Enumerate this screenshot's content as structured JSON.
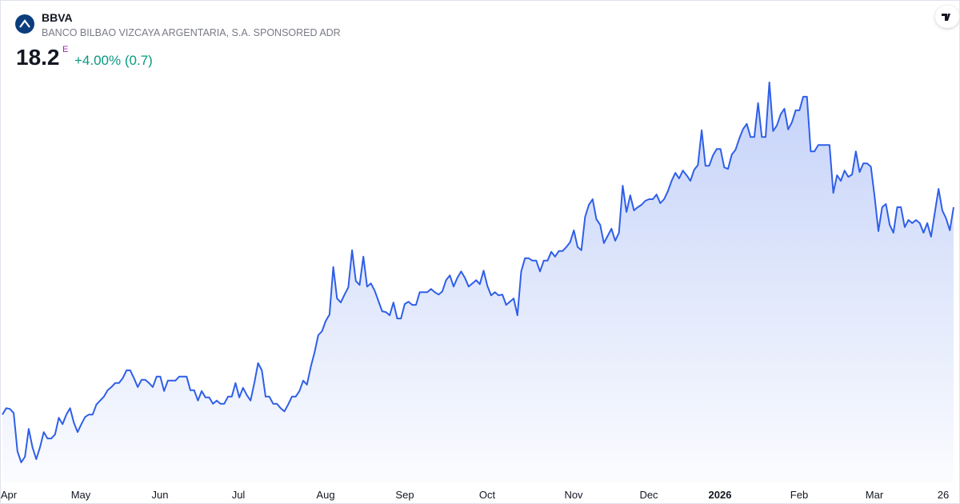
{
  "header": {
    "symbol": "BBVA",
    "name": "BANCO BILBAO VIZCAYA ARGENTARIA, S.A. SPONSORED ADR",
    "price": 18.2,
    "price_flag": "E",
    "change_pct": {
      "value": 4,
      "label": "+4.00%"
    },
    "change": {
      "value": 0.7,
      "label": "(0.7)"
    }
  },
  "chart_data": {
    "type": "area",
    "x_labels": [
      "Apr",
      "May",
      "Jun",
      "Jul",
      "Aug",
      "Sep",
      "Oct",
      "Nov",
      "Dec",
      "2026",
      "Feb",
      "Mar",
      "26"
    ],
    "series": [
      {
        "name": "BBVA",
        "color": "#2f5fe8",
        "values": [
          13.0,
          13.16,
          13.14,
          13.04,
          12.08,
          11.8,
          11.94,
          12.64,
          12.18,
          11.88,
          12.18,
          12.56,
          12.4,
          12.4,
          12.5,
          12.92,
          12.76,
          13.0,
          13.16,
          12.8,
          12.56,
          12.76,
          12.94,
          13.0,
          13.0,
          13.25,
          13.35,
          13.45,
          13.61,
          13.69,
          13.79,
          13.79,
          13.91,
          14.11,
          14.11,
          13.91,
          13.69,
          13.87,
          13.87,
          13.79,
          13.69,
          13.95,
          13.95,
          13.59,
          13.85,
          13.85,
          13.85,
          13.95,
          13.95,
          13.95,
          13.61,
          13.61,
          13.35,
          13.59,
          13.43,
          13.43,
          13.27,
          13.35,
          13.27,
          13.27,
          13.45,
          13.45,
          13.79,
          13.43,
          13.67,
          13.49,
          13.35,
          13.79,
          14.29,
          14.11,
          13.45,
          13.45,
          13.27,
          13.27,
          13.16,
          13.08,
          13.25,
          13.45,
          13.45,
          13.59,
          13.85,
          13.75,
          14.19,
          14.55,
          14.99,
          15.09,
          15.35,
          15.51,
          16.7,
          15.91,
          15.81,
          16.01,
          16.19,
          17.12,
          16.35,
          16.25,
          16.96,
          16.21,
          16.29,
          16.11,
          15.85,
          15.59,
          15.57,
          15.49,
          15.81,
          15.41,
          15.41,
          15.77,
          15.83,
          15.75,
          15.75,
          16.07,
          16.07,
          16.07,
          16.15,
          16.07,
          16.01,
          16.09,
          16.37,
          16.49,
          16.21,
          16.43,
          16.59,
          16.43,
          16.21,
          16.29,
          16.37,
          16.27,
          16.61,
          16.23,
          15.99,
          16.07,
          15.99,
          16.01,
          15.75,
          15.83,
          15.91,
          15.49,
          16.59,
          16.92,
          16.92,
          16.86,
          16.86,
          16.59,
          16.86,
          16.86,
          17.08,
          16.96,
          17.1,
          17.1,
          17.2,
          17.32,
          17.62,
          17.2,
          17.12,
          17.96,
          18.26,
          18.4,
          17.9,
          17.76,
          17.3,
          17.48,
          17.66,
          17.36,
          17.56,
          18.74,
          18.08,
          18.5,
          18.12,
          18.2,
          18.26,
          18.36,
          18.4,
          18.4,
          18.52,
          18.3,
          18.4,
          18.6,
          18.86,
          19.06,
          18.92,
          19.12,
          19.0,
          18.86,
          19.14,
          19.26,
          20.13,
          19.24,
          19.24,
          19.5,
          19.66,
          19.66,
          19.2,
          19.16,
          19.52,
          19.64,
          19.92,
          20.16,
          20.29,
          19.96,
          19.96,
          20.81,
          19.96,
          19.96,
          21.33,
          20.11,
          20.25,
          20.53,
          20.67,
          20.15,
          20.33,
          20.63,
          20.63,
          20.97,
          20.97,
          19.6,
          19.6,
          19.76,
          19.76,
          19.76,
          19.76,
          18.56,
          19.0,
          18.86,
          19.12,
          18.96,
          19.02,
          19.6,
          19.08,
          19.3,
          19.3,
          19.22,
          18.46,
          17.6,
          18.2,
          18.28,
          17.76,
          17.56,
          18.2,
          18.2,
          17.7,
          17.88,
          17.8,
          17.88,
          17.8,
          17.56,
          17.8,
          17.46,
          18.06,
          18.66,
          18.12,
          17.92,
          17.62,
          18.2
        ]
      }
    ]
  }
}
